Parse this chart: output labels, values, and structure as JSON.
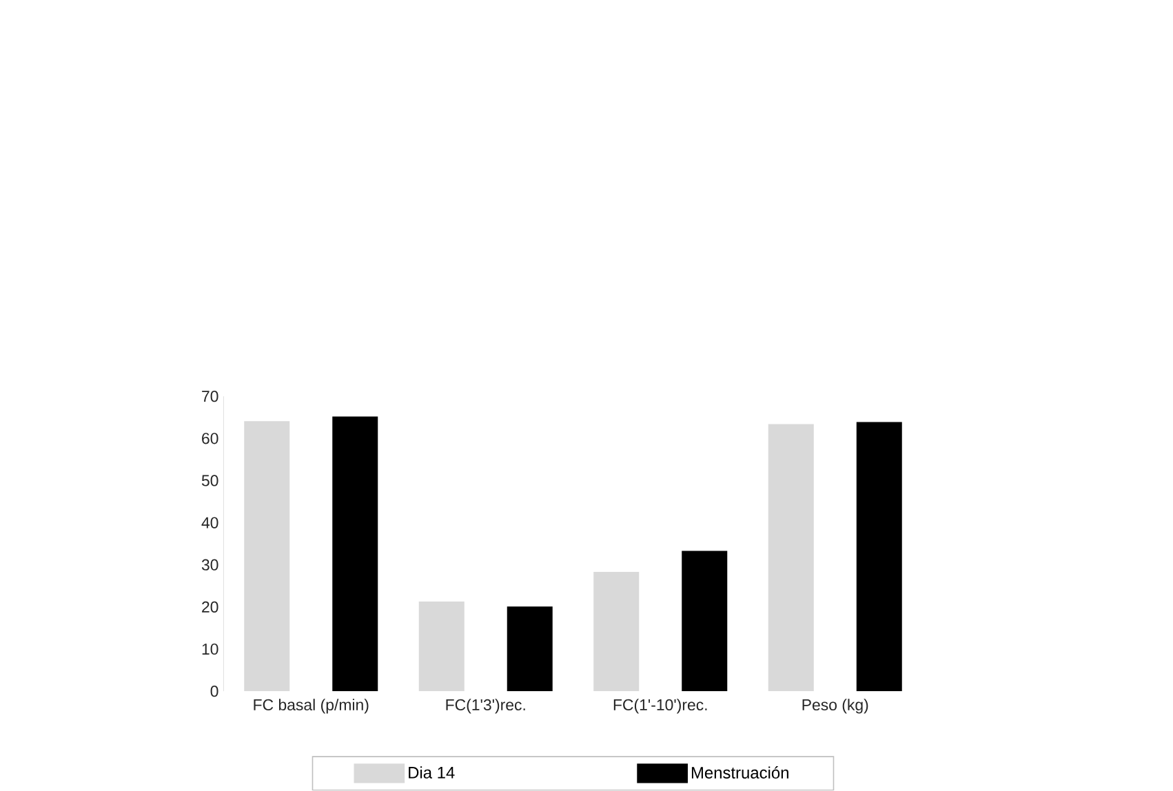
{
  "chart_data": {
    "type": "bar",
    "categories": [
      "FC basal (p/min)",
      "FC(1'3')rec.",
      "FC(1'-10')rec.",
      "Peso (kg)"
    ],
    "series": [
      {
        "name": "Dia 14",
        "color": "#d9d9d9",
        "values": [
          64.1,
          21.3,
          28.3,
          63.4
        ]
      },
      {
        "name": "Menstruación",
        "color": "#000000",
        "values": [
          65.2,
          20.1,
          33.3,
          63.9
        ]
      }
    ],
    "ylim": [
      0,
      70
    ],
    "yticks": [
      0,
      10,
      20,
      30,
      40,
      50,
      60,
      70
    ],
    "grid": false,
    "legend": "bottom"
  }
}
